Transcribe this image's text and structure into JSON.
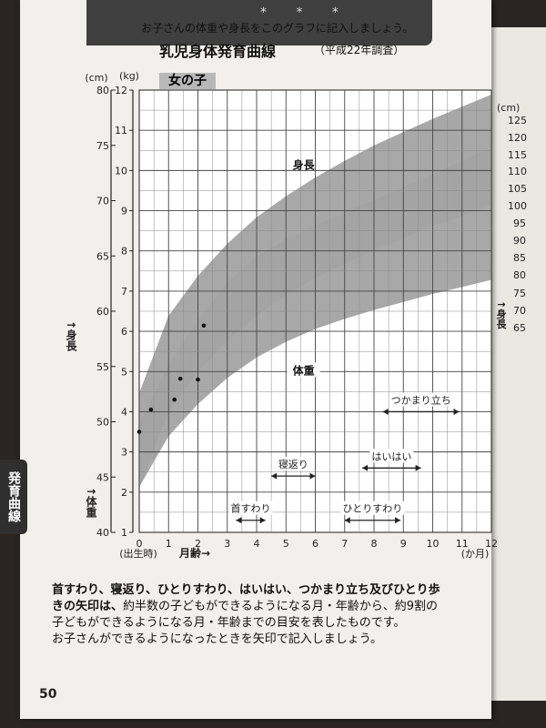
{
  "header": {
    "stars": "* * *",
    "subtitle": "お子さんの体重や身長をこのグラフに記入しましょう。",
    "title": "乳児身体発育曲線",
    "title_note": "（平成22年調査）",
    "badge": "女の子"
  },
  "side_tab": "発育曲線",
  "caption": {
    "line1_bold": "首すわり、寝返り、ひとりすわり、はいはい、つかまり立ち及びひとり歩",
    "line2_pre": "きの矢印は、",
    "line2_rest": "約半数の子どもができるようになる月・年齢から、約9割の",
    "line3": "子どもができるようになる月・年齢までの目安を表したものです。",
    "line4": "お子さんができるようになったときを矢印で記入しましょう。"
  },
  "page_number": "50",
  "next_page": {
    "unit": "(cm)",
    "ticks": [
      "125",
      "120",
      "115",
      "110",
      "105",
      "100",
      "95",
      "90",
      "85",
      "80",
      "75",
      "70",
      "65"
    ],
    "axis_label": "↑身長"
  },
  "chart_data": {
    "type": "area",
    "x_unit": "(か月)",
    "x_start_label": "(出生時)",
    "x_label": "月齢→",
    "xlim": [
      0,
      12
    ],
    "x_ticks": [
      0,
      1,
      2,
      3,
      4,
      5,
      6,
      7,
      8,
      9,
      10,
      11,
      12
    ],
    "height_axis": {
      "unit": "(cm)",
      "label": "↑身長",
      "ylim": [
        40,
        80
      ],
      "ticks": [
        40,
        45,
        50,
        55,
        60,
        65,
        70,
        75,
        80
      ]
    },
    "weight_axis": {
      "unit": "(kg)",
      "label": "↑体重",
      "ylim": [
        1,
        12
      ],
      "ticks": [
        1,
        2,
        3,
        4,
        5,
        6,
        7,
        8,
        9,
        10,
        11,
        12
      ]
    },
    "bands": [
      {
        "name": "身長",
        "axis": "height",
        "x": [
          0,
          1,
          2,
          3,
          4,
          5,
          6,
          7,
          8,
          9,
          10,
          11,
          12
        ],
        "lower": [
          44.0,
          50.9,
          54.5,
          57.4,
          59.6,
          61.5,
          63.0,
          64.3,
          65.5,
          66.6,
          67.7,
          68.6,
          69.6
        ],
        "upper": [
          52.6,
          59.6,
          63.2,
          66.1,
          68.5,
          70.4,
          72.1,
          73.6,
          75.0,
          76.2,
          77.4,
          78.5,
          79.6
        ],
        "color": "#a3a3a3"
      },
      {
        "name": "体重",
        "axis": "weight",
        "x": [
          0,
          1,
          2,
          3,
          4,
          5,
          6,
          7,
          8,
          9,
          10,
          11,
          12
        ],
        "lower": [
          2.13,
          3.39,
          4.19,
          4.84,
          5.35,
          5.74,
          6.06,
          6.31,
          6.53,
          6.73,
          6.93,
          7.1,
          7.28
        ],
        "upper": [
          3.67,
          5.17,
          6.28,
          7.22,
          7.86,
          8.29,
          8.64,
          8.96,
          9.27,
          9.58,
          9.91,
          10.24,
          10.57
        ],
        "color": "#a3a3a3"
      }
    ],
    "measured_points": [
      {
        "series": "身長",
        "axis": "height",
        "x": [
          0.4,
          1.4,
          2.2
        ],
        "y": [
          51.1,
          53.9,
          58.7
        ]
      },
      {
        "series": "体重",
        "axis": "weight",
        "x": [
          0,
          1.2,
          2.0
        ],
        "y": [
          3.5,
          4.3,
          4.8
        ]
      }
    ],
    "milestones": [
      {
        "label": "首すわり",
        "from": 3.3,
        "to": 4.3,
        "level": 1.3
      },
      {
        "label": "寝返り",
        "from": 4.5,
        "to": 6.0,
        "level": 2.4
      },
      {
        "label": "ひとりすわり",
        "from": 7.0,
        "to": 8.9,
        "level": 1.3
      },
      {
        "label": "はいはい",
        "from": 7.6,
        "to": 9.6,
        "level": 2.6
      },
      {
        "label": "つかまり立ち",
        "from": 8.3,
        "to": 10.9,
        "level": 4.0
      }
    ]
  }
}
